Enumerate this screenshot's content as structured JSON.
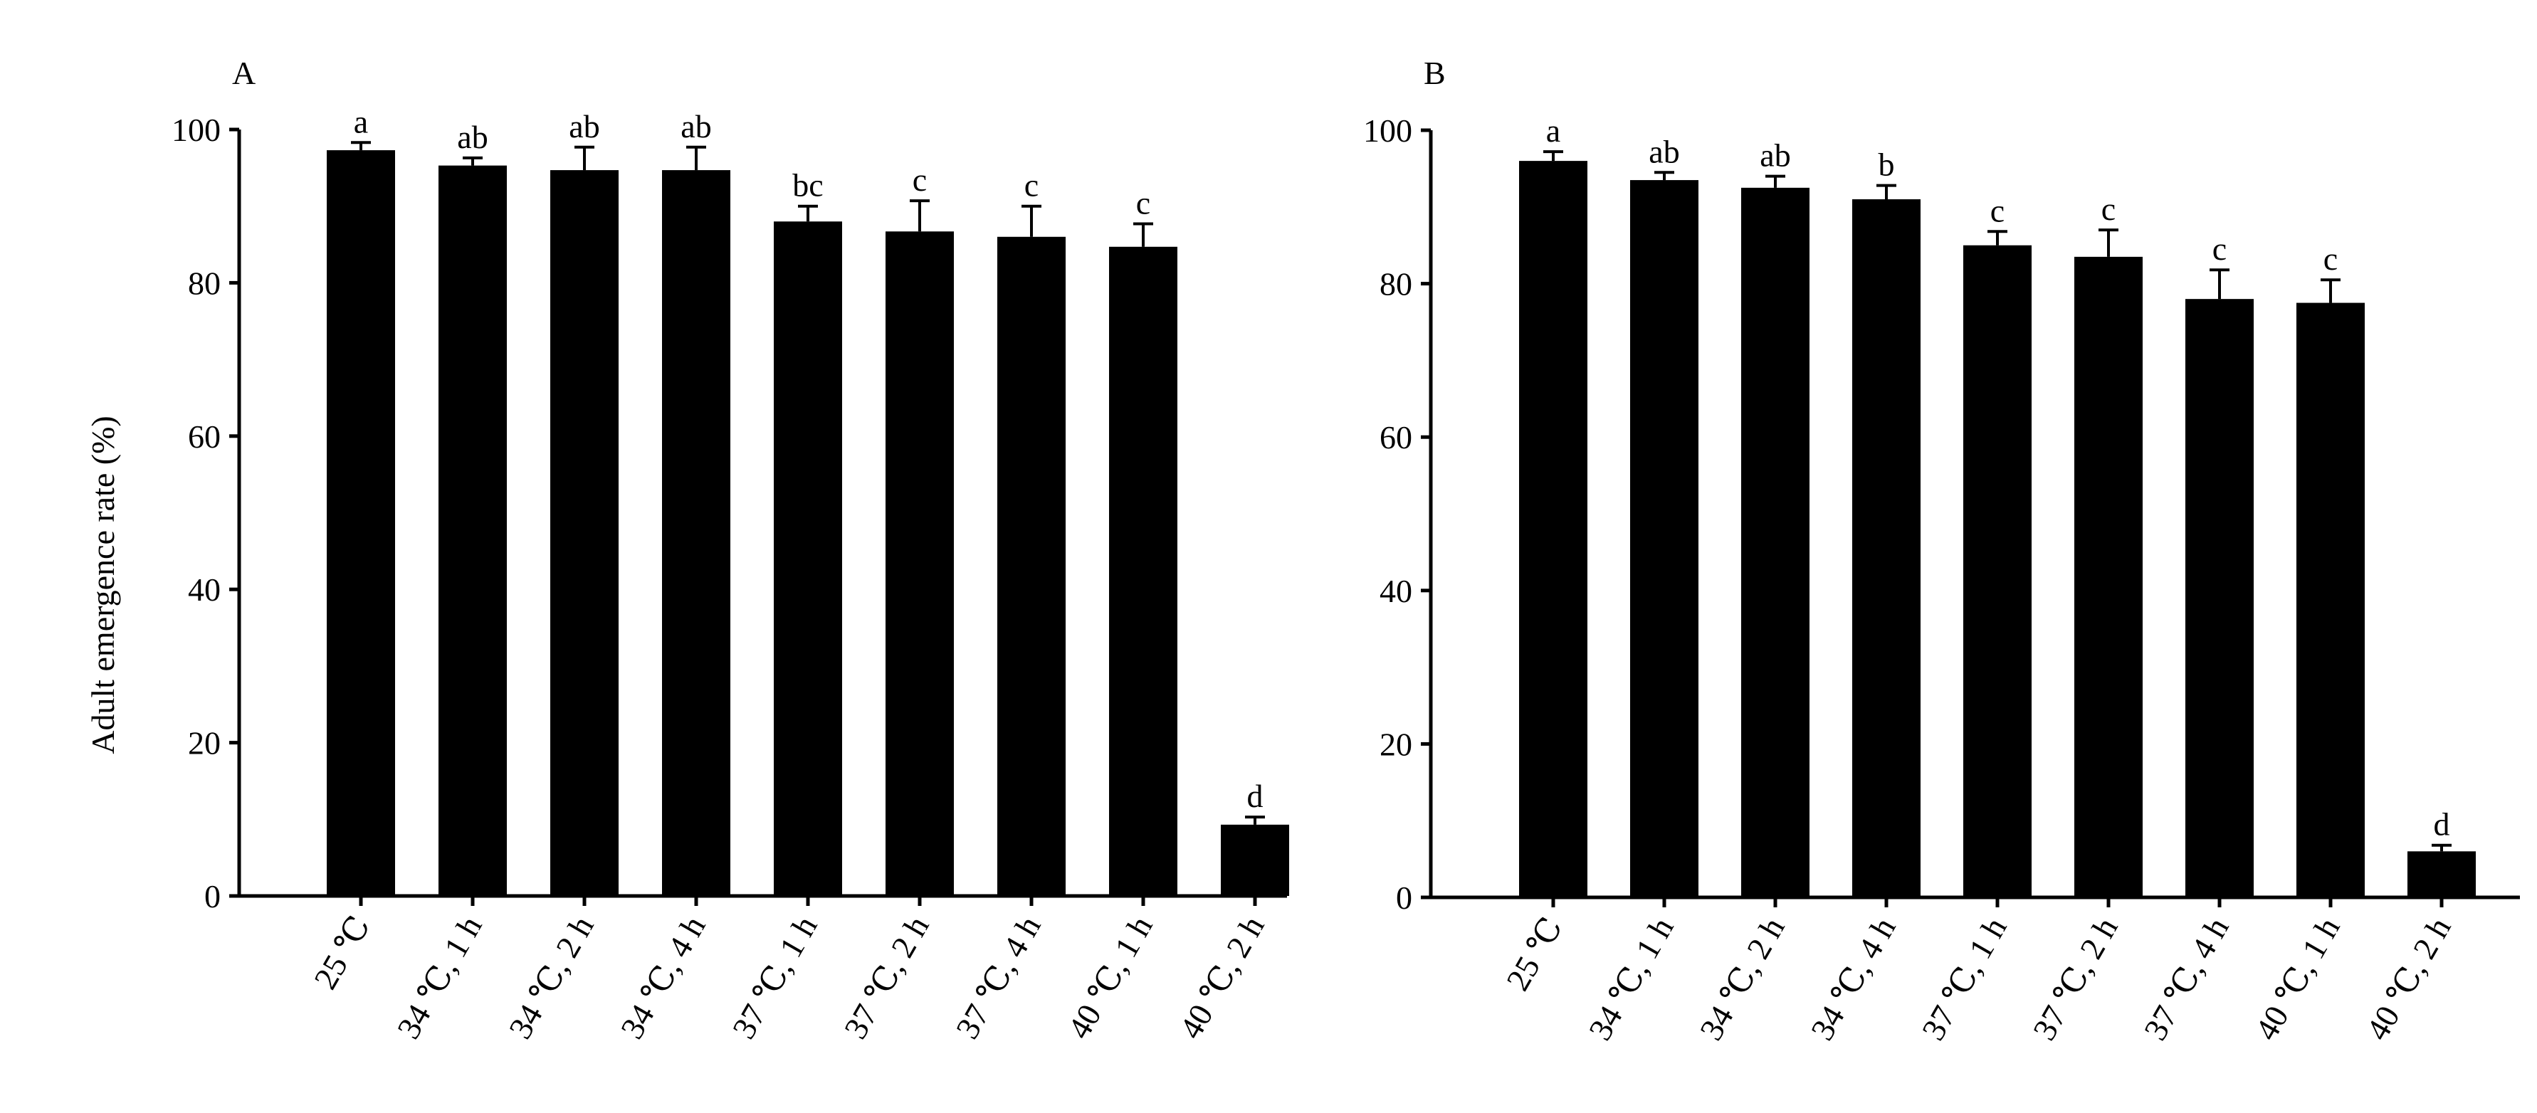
{
  "colors": {
    "bar": "#000000",
    "axis": "#000000",
    "background": "#ffffff"
  },
  "chart_data": [
    {
      "type": "bar",
      "panel_label": "A",
      "ylabel": "Adult emergence rate (%)",
      "xlabel": "",
      "ylim": [
        0,
        100
      ],
      "yticks": [
        0,
        20,
        40,
        60,
        80,
        100
      ],
      "categories": [
        "25 ℃",
        "34 ℃, 1 h",
        "34 ℃, 2 h",
        "34 ℃, 4 h",
        "37 ℃, 1 h",
        "37 ℃, 2 h",
        "37 ℃, 4 h",
        "40 ℃, 1 h",
        "40 ℃, 2 h"
      ],
      "values": [
        97.3,
        95.3,
        94.7,
        94.7,
        88.0,
        86.7,
        86.0,
        84.7,
        9.3
      ],
      "errors": [
        1.0,
        1.0,
        3.0,
        3.0,
        2.0,
        4.0,
        4.0,
        3.0,
        1.0
      ],
      "significance": [
        "a",
        "ab",
        "ab",
        "ab",
        "bc",
        "c",
        "c",
        "c",
        "d"
      ],
      "grid": false,
      "legend": "none"
    },
    {
      "type": "bar",
      "panel_label": "B",
      "ylabel": "",
      "xlabel": "",
      "ylim": [
        0,
        100
      ],
      "yticks": [
        0,
        20,
        40,
        60,
        80,
        100
      ],
      "categories": [
        "25 ℃",
        "34 ℃, 1 h",
        "34 ℃, 2 h",
        "34 ℃, 4 h",
        "37 ℃, 1 h",
        "37 ℃, 2 h",
        "37 ℃, 4 h",
        "40 ℃, 1 h",
        "40 ℃, 2 h"
      ],
      "values": [
        96.0,
        93.5,
        92.5,
        91.0,
        85.0,
        83.5,
        78.0,
        77.5,
        6.0
      ],
      "errors": [
        1.2,
        1.0,
        1.5,
        1.8,
        1.8,
        3.5,
        3.8,
        3.0,
        0.8
      ],
      "significance": [
        "a",
        "ab",
        "ab",
        "b",
        "c",
        "c",
        "c",
        "c",
        "d"
      ],
      "grid": false,
      "legend": "none"
    }
  ]
}
